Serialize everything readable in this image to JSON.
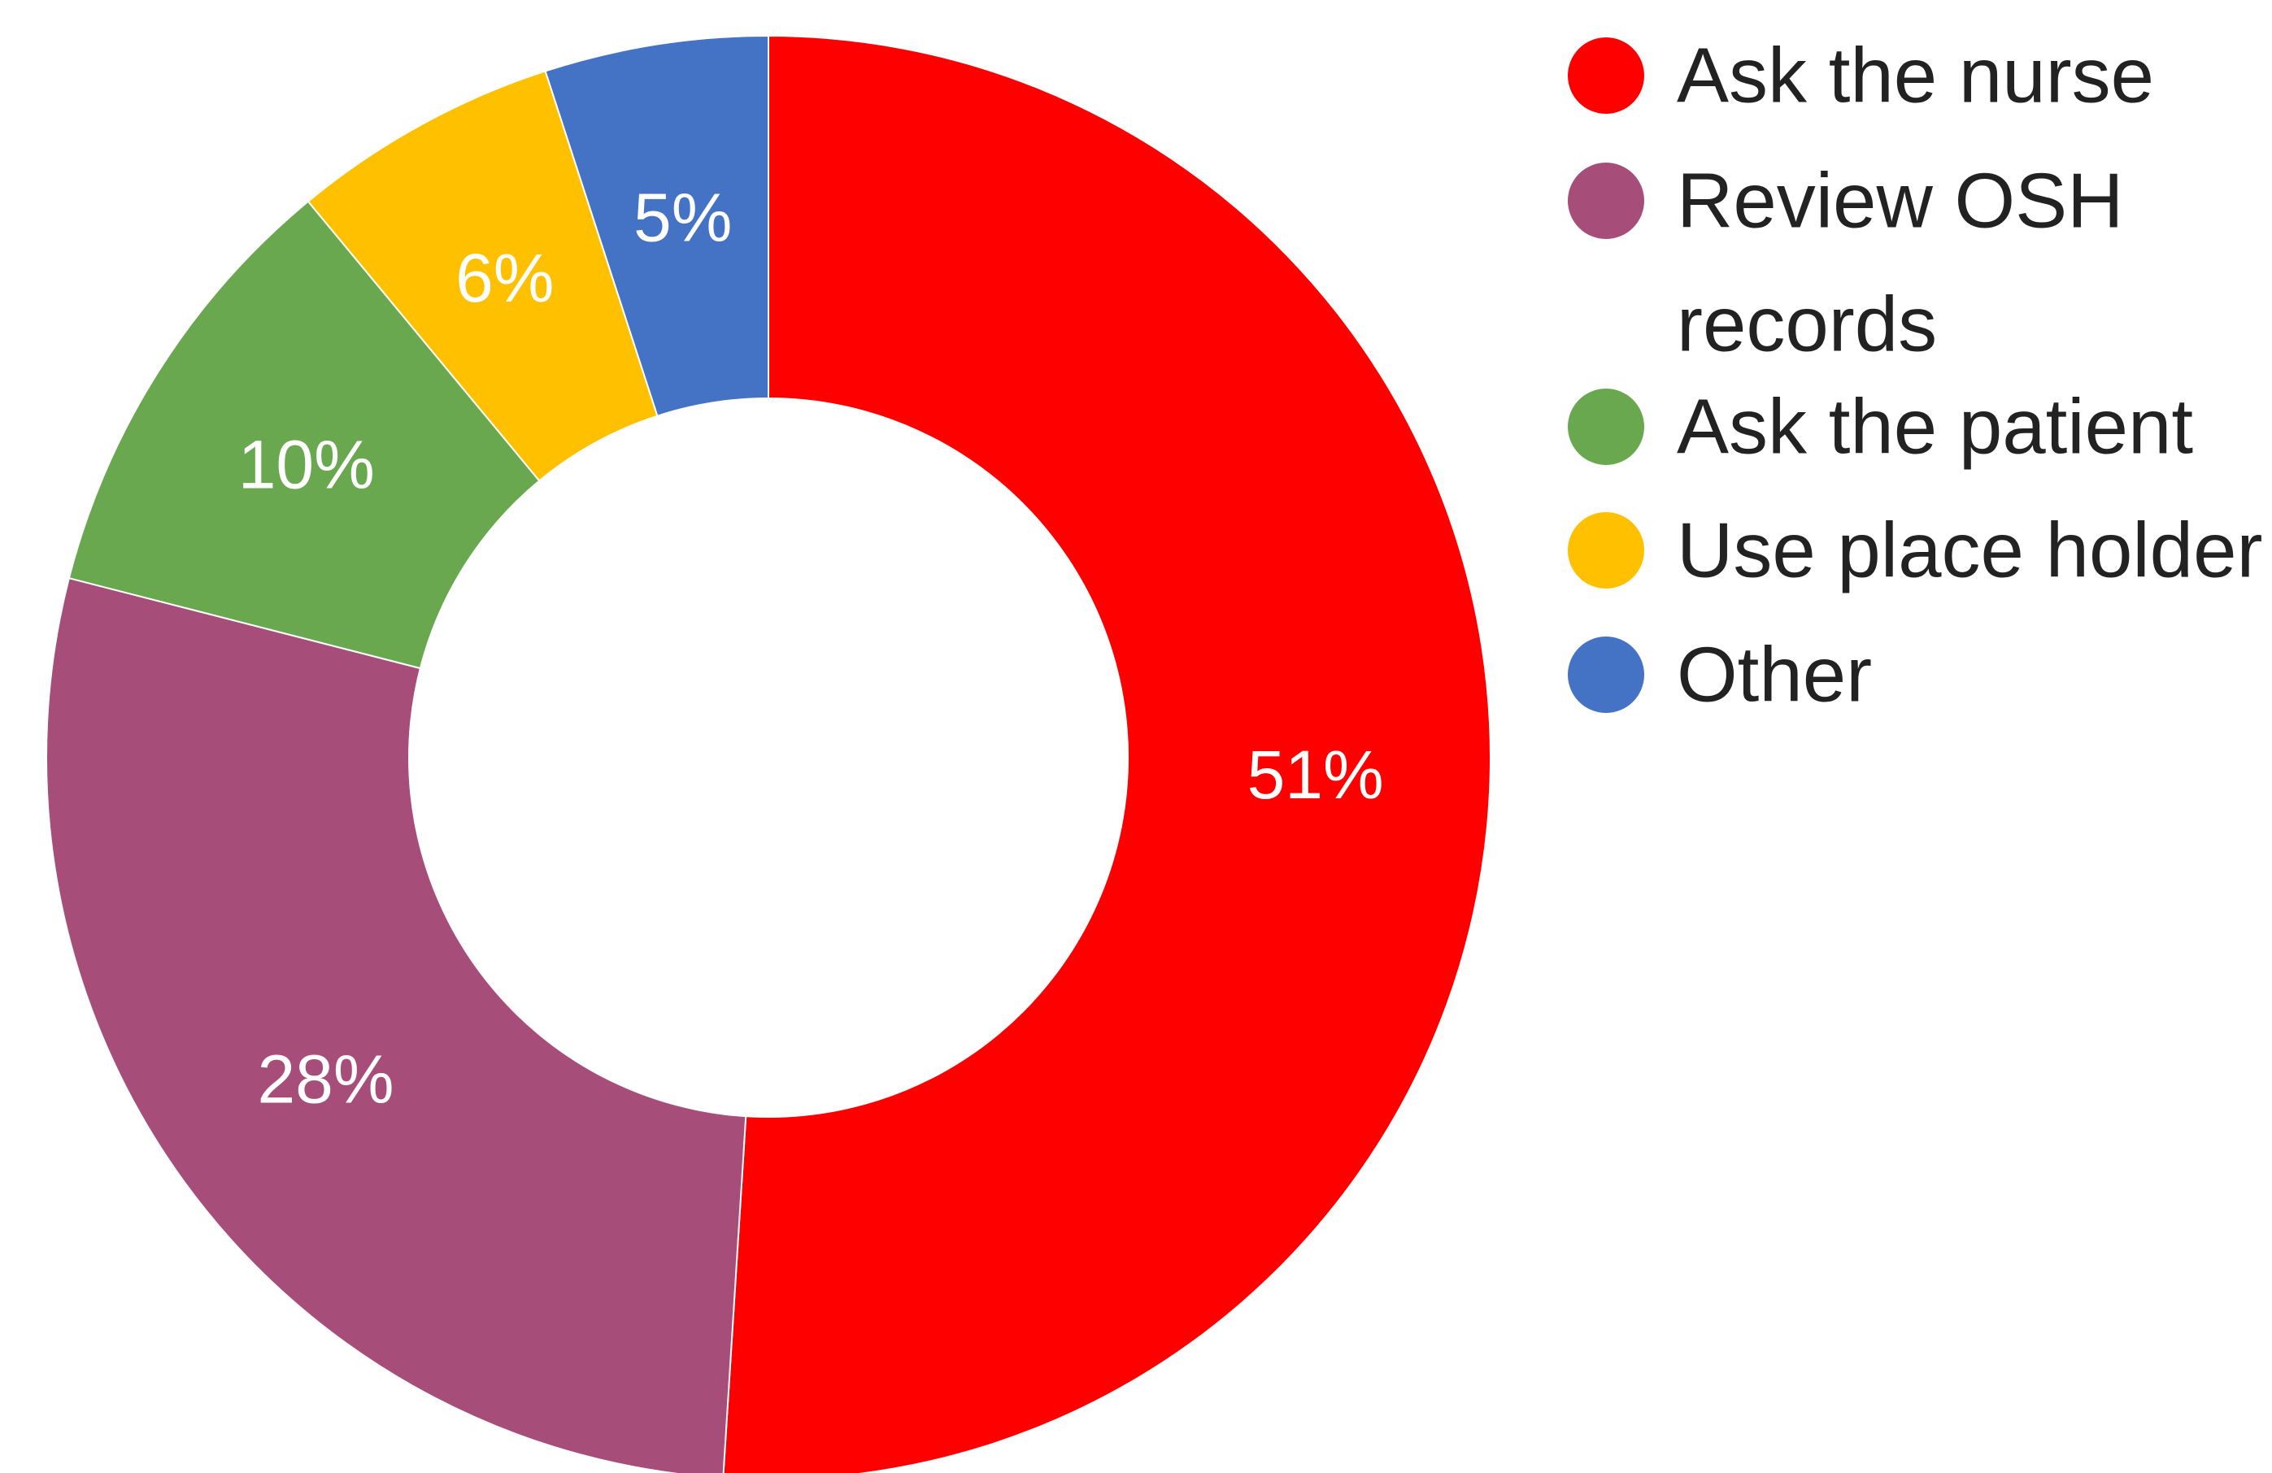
{
  "chart_data": {
    "type": "pie",
    "variant": "donut",
    "categories": [
      "Ask the nurse",
      "Review OSH records",
      "Ask the patient",
      "Use place holder",
      "Other"
    ],
    "values": [
      51,
      28,
      10,
      6,
      5
    ],
    "value_labels": [
      "51%",
      "28%",
      "10%",
      "6%",
      "5%"
    ],
    "colors": [
      "#ff0000",
      "#a64d79",
      "#6aa84f",
      "#ffc000",
      "#4472c4"
    ],
    "legend": {
      "position": "right",
      "lines": [
        [
          "Ask the nurse"
        ],
        [
          "Review OSH",
          "records"
        ],
        [
          "Ask the patient"
        ],
        [
          "Use place holder"
        ],
        [
          "Other"
        ]
      ]
    },
    "start_angle": "12 o'clock",
    "direction": "clockwise"
  }
}
